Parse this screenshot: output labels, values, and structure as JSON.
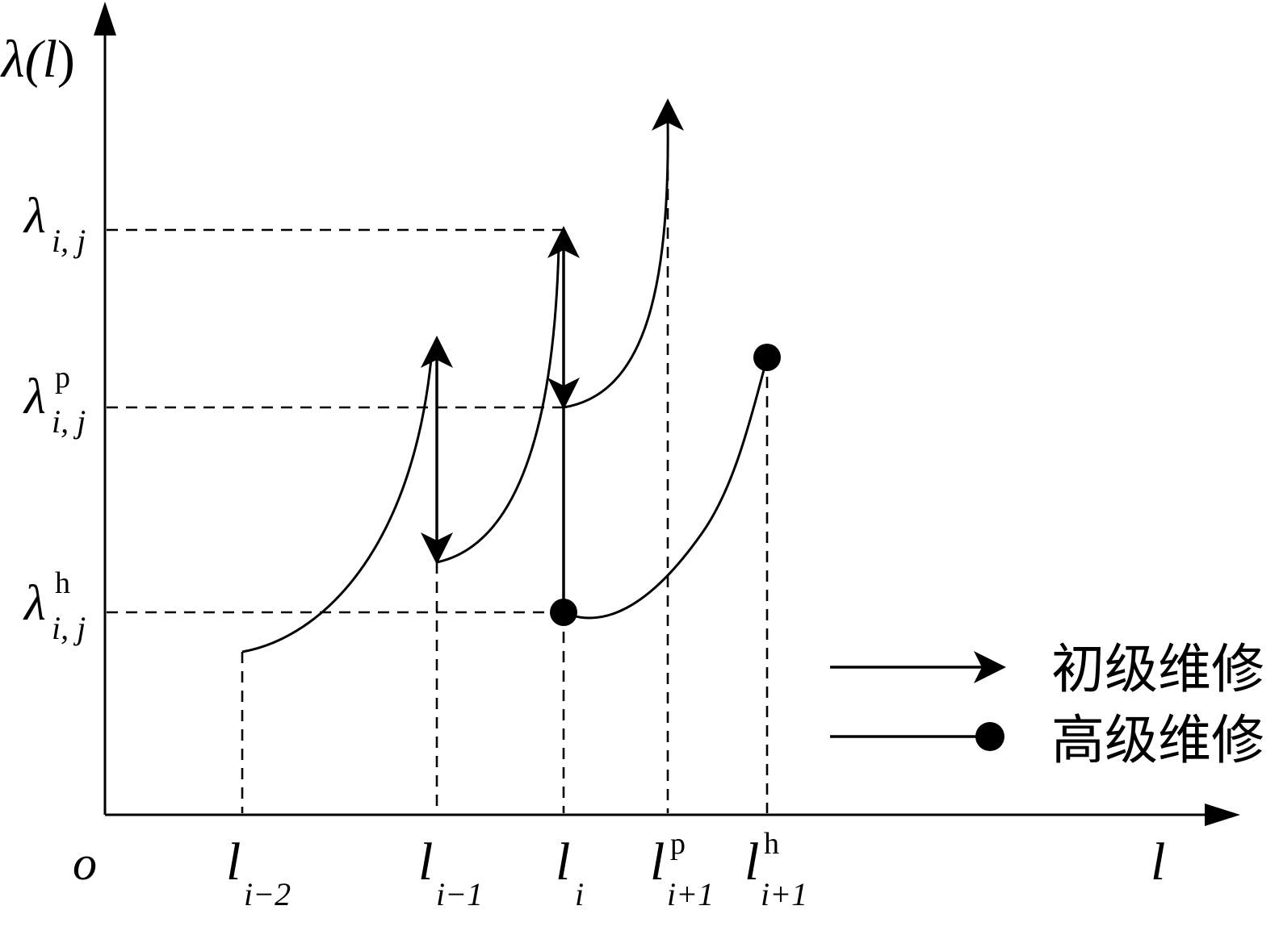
{
  "axes": {
    "y_label_main": "λ(",
    "y_label_var": "l",
    "y_label_close": ")",
    "x_label": "l",
    "origin": "o"
  },
  "y_ticks": [
    {
      "base": "λ",
      "sub": "i, j",
      "sup": ""
    },
    {
      "base": "λ",
      "sub": "i, j",
      "sup": "p"
    },
    {
      "base": "λ",
      "sub": "i, j",
      "sup": "h"
    }
  ],
  "x_ticks": [
    {
      "base": "l",
      "sub": "i−2",
      "sup": ""
    },
    {
      "base": "l",
      "sub": "i−1",
      "sup": ""
    },
    {
      "base": "l",
      "sub": "i",
      "sup": ""
    },
    {
      "base": "l",
      "sub": "i+1",
      "sup": "p"
    },
    {
      "base": "l",
      "sub": "i+1",
      "sup": "h"
    }
  ],
  "legend": [
    {
      "marker": "arrow",
      "label": "初级维修"
    },
    {
      "marker": "dot",
      "label": "高级维修"
    }
  ],
  "colors": {
    "ink": "#000000",
    "background": "#ffffff"
  }
}
